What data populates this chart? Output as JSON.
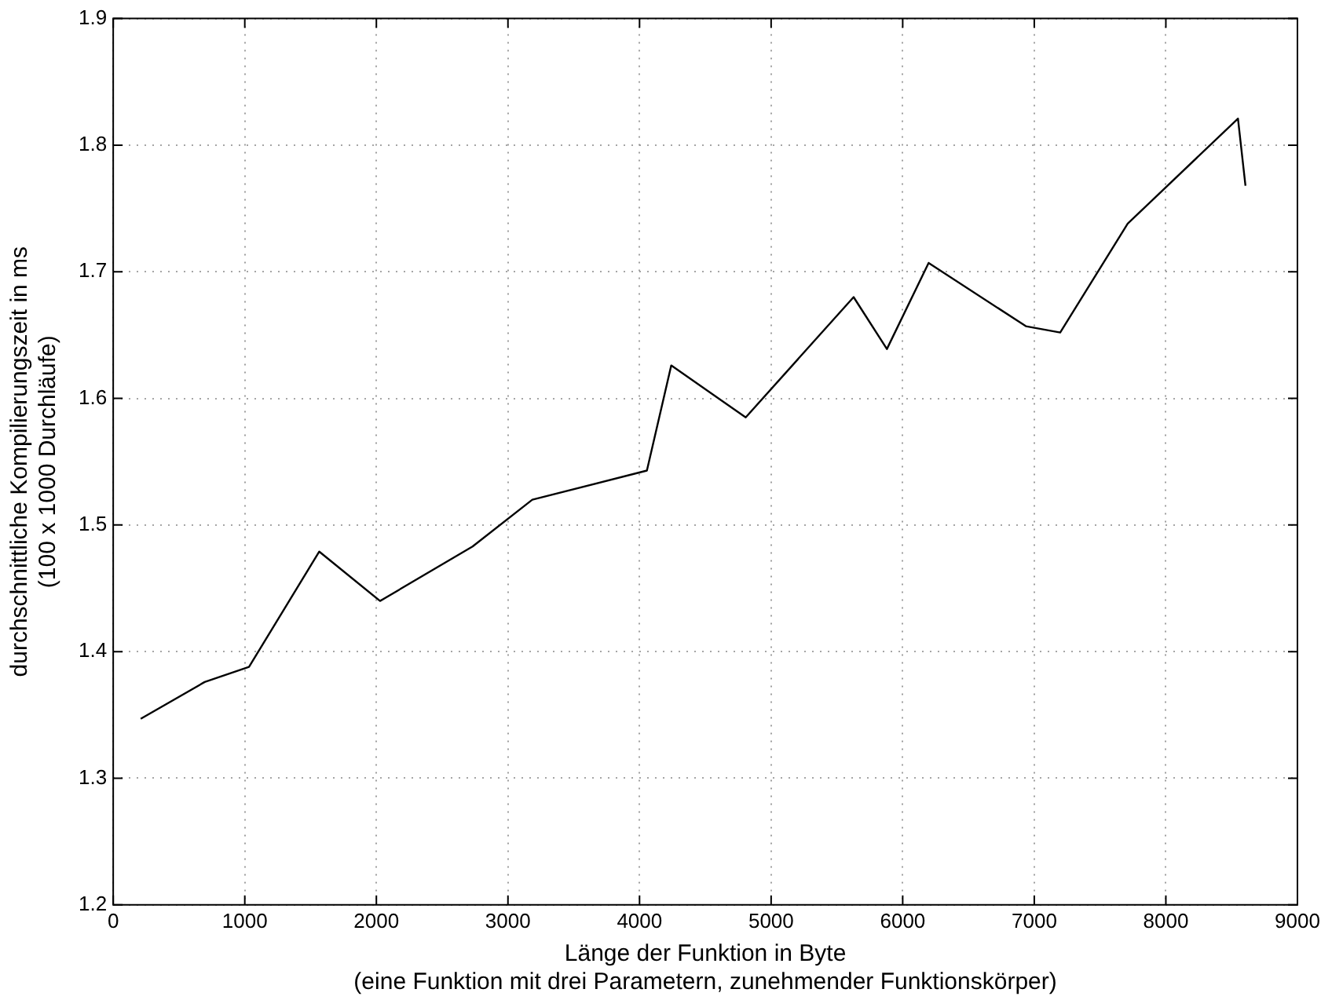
{
  "chart_data": {
    "type": "line",
    "xlabel": "Länge der Funktion in Byte\n(eine Funktion mit drei Parametern, zunehmender Funktionskörper)",
    "ylabel": "durchschnittliche Kompilierungszeit in ms\n(100 x 1000 Durchläufe)",
    "x": [
      209,
      695,
      1032,
      1566,
      2028,
      2731,
      3185,
      4056,
      4241,
      4807,
      5627,
      5880,
      6197,
      6936,
      7197,
      7710,
      8548,
      8605
    ],
    "series": [
      {
        "color": "#000000",
        "values": [
          1.347,
          1.376,
          1.388,
          1.479,
          1.44,
          1.483,
          1.52,
          1.543,
          1.626,
          1.585,
          1.68,
          1.639,
          1.707,
          1.657,
          1.652,
          1.738,
          1.821,
          1.768
        ]
      }
    ],
    "xlim": [
      0,
      9000
    ],
    "xticks": [
      0,
      1000,
      2000,
      3000,
      4000,
      5000,
      6000,
      7000,
      8000,
      9000
    ],
    "ylim": [
      1.2,
      1.9
    ],
    "yticks": [
      1.2,
      1.3,
      1.4,
      1.5,
      1.6,
      1.7,
      1.8,
      1.9
    ],
    "grid": true,
    "legend": false,
    "marker": "none",
    "line_style": "solid"
  }
}
